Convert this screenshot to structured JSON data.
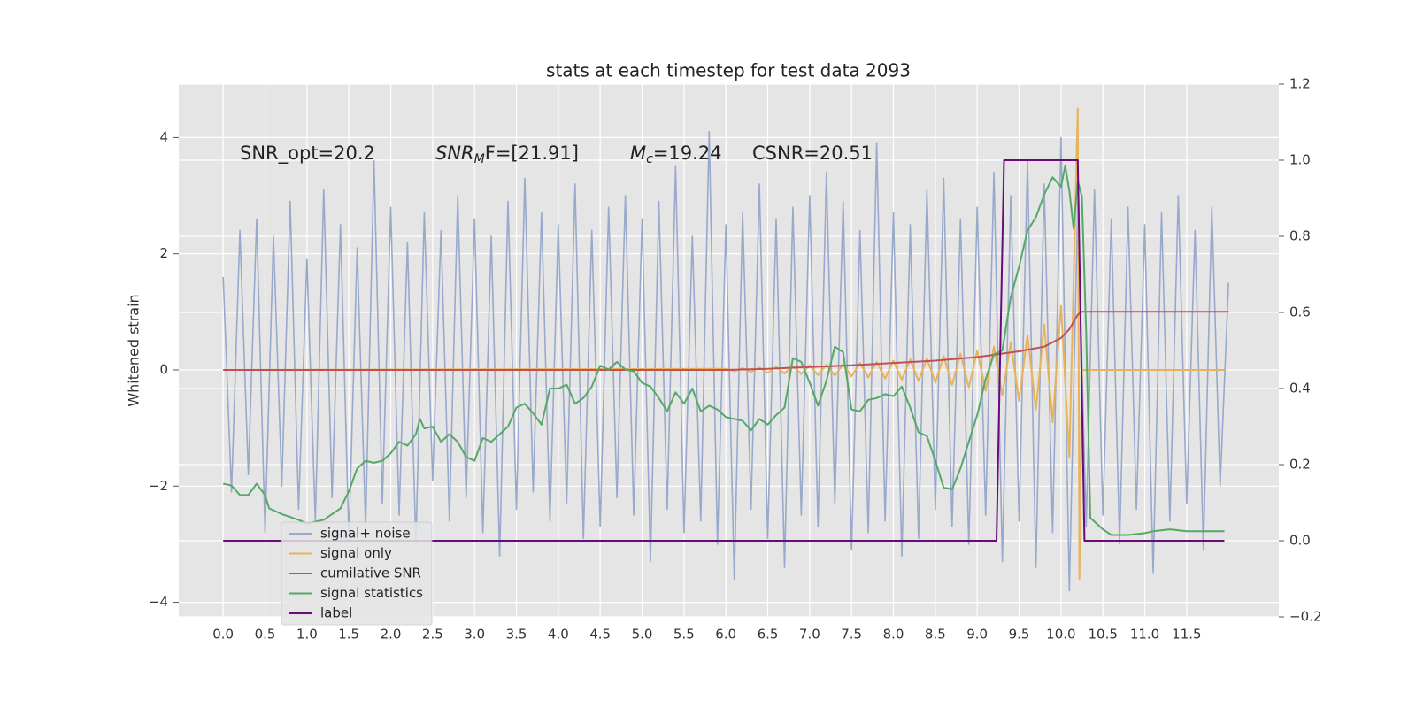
{
  "chart_data": {
    "type": "line",
    "title": "stats at each timestep for test data 2093",
    "ylabel": "Whitened strain",
    "xlim": [
      -0.53,
      12.6
    ],
    "ylim": [
      -4.25,
      4.92
    ],
    "y2lim": [
      -0.2,
      1.2
    ],
    "xticks": [
      {
        "value": 0,
        "label": "0.0"
      },
      {
        "value": 0.5,
        "label": "0.5"
      },
      {
        "value": 1,
        "label": "1.0"
      },
      {
        "value": 1.5,
        "label": "1.5"
      },
      {
        "value": 2,
        "label": "2.0"
      },
      {
        "value": 2.5,
        "label": "2.5"
      },
      {
        "value": 3,
        "label": "3.0"
      },
      {
        "value": 3.5,
        "label": "3.5"
      },
      {
        "value": 4,
        "label": "4.0"
      },
      {
        "value": 4.5,
        "label": "4.5"
      },
      {
        "value": 5,
        "label": "5.0"
      },
      {
        "value": 5.5,
        "label": "5.5"
      },
      {
        "value": 6,
        "label": "6.0"
      },
      {
        "value": 6.5,
        "label": "6.5"
      },
      {
        "value": 7,
        "label": "7.0"
      },
      {
        "value": 7.5,
        "label": "7.5"
      },
      {
        "value": 8,
        "label": "8.0"
      },
      {
        "value": 8.5,
        "label": "8.5"
      },
      {
        "value": 9,
        "label": "9.0"
      },
      {
        "value": 9.5,
        "label": "9.5"
      },
      {
        "value": 10,
        "label": "10.0"
      },
      {
        "value": 10.5,
        "label": "10.5"
      },
      {
        "value": 11,
        "label": "11.0"
      },
      {
        "value": 11.5,
        "label": "11.5"
      }
    ],
    "yticks": [
      {
        "value": -4,
        "label": "−4"
      },
      {
        "value": -2,
        "label": "−2"
      },
      0,
      2,
      4
    ],
    "y2ticks": [
      {
        "value": -0.2,
        "label": "−0.2"
      },
      {
        "value": 0,
        "label": "0.0"
      },
      0.2,
      0.4,
      0.6,
      0.8,
      {
        "value": 1,
        "label": "1.0"
      },
      1.2
    ],
    "grid": true,
    "legend": "lower left",
    "annotations": [
      {
        "text": "SNR_opt=20.2"
      },
      {
        "base": "SNR",
        "sub": "M",
        "tail": "F=[21.91]"
      },
      {
        "base": "M",
        "sub": "c",
        "tail": "=19.24"
      },
      {
        "text": "CSNR=20.51"
      }
    ],
    "series": [
      {
        "name": "signal+ noise",
        "color": "#98a9cc",
        "x": [
          0,
          0.1,
          0.2,
          0.3,
          0.4,
          0.5,
          0.6,
          0.7,
          0.8,
          0.9,
          1,
          1.1,
          1.2,
          1.3,
          1.4,
          1.5,
          1.6,
          1.7,
          1.8,
          1.9,
          2,
          2.1,
          2.2,
          2.3,
          2.4,
          2.5,
          2.6,
          2.7,
          2.8,
          2.9,
          3,
          3.1,
          3.2,
          3.3,
          3.4,
          3.5,
          3.6,
          3.7,
          3.8,
          3.9,
          4,
          4.1,
          4.2,
          4.3,
          4.4,
          4.5,
          4.6,
          4.7,
          4.8,
          4.9,
          5,
          5.1,
          5.2,
          5.3,
          5.4,
          5.5,
          5.6,
          5.7,
          5.8,
          5.9,
          6,
          6.1,
          6.2,
          6.3,
          6.4,
          6.5,
          6.6,
          6.7,
          6.8,
          6.9,
          7,
          7.1,
          7.2,
          7.3,
          7.4,
          7.5,
          7.6,
          7.7,
          7.8,
          7.9,
          8,
          8.1,
          8.2,
          8.3,
          8.4,
          8.5,
          8.6,
          8.7,
          8.8,
          8.9,
          9,
          9.1,
          9.2,
          9.3,
          9.4,
          9.5,
          9.6,
          9.7,
          9.8,
          9.9,
          10,
          10.1,
          10.2,
          10.3,
          10.4,
          10.5,
          10.6,
          10.7,
          10.8,
          10.9,
          11,
          11.1,
          11.2,
          11.3,
          11.4,
          11.5,
          11.6,
          11.7,
          11.8,
          11.9,
          12
        ],
        "values": [
          1.6,
          -2.1,
          2.4,
          -1.8,
          2.6,
          -2.8,
          2.3,
          -2.0,
          2.9,
          -2.4,
          1.9,
          -2.6,
          3.1,
          -2.2,
          2.5,
          -2.9,
          2.1,
          -2.7,
          3.6,
          -2.3,
          2.8,
          -2.5,
          2.2,
          -3.0,
          2.7,
          -1.9,
          2.4,
          -2.6,
          3.0,
          -2.2,
          2.6,
          -2.8,
          2.3,
          -3.2,
          2.9,
          -2.4,
          3.3,
          -2.1,
          2.7,
          -2.6,
          2.5,
          -2.3,
          3.2,
          -2.9,
          2.4,
          -2.7,
          2.8,
          -2.2,
          3.0,
          -2.5,
          2.6,
          -3.3,
          2.9,
          -2.4,
          3.5,
          -2.8,
          2.3,
          -2.6,
          4.1,
          -3.0,
          2.5,
          -3.6,
          2.7,
          -2.4,
          3.2,
          -2.9,
          2.6,
          -3.4,
          2.8,
          -2.5,
          3.0,
          -2.7,
          3.4,
          -2.3,
          2.9,
          -3.1,
          2.4,
          -2.8,
          3.9,
          -2.6,
          2.7,
          -3.2,
          2.5,
          -2.9,
          3.1,
          -2.4,
          3.3,
          -2.7,
          2.6,
          -3.0,
          2.8,
          -2.5,
          3.4,
          -3.3,
          3.0,
          -2.6,
          3.6,
          -3.4,
          3.2,
          -2.8,
          4.0,
          -3.8,
          2.9,
          -2.7,
          3.1,
          -2.5,
          2.6,
          -3.0,
          2.8,
          -2.4,
          2.5,
          -3.5,
          2.7,
          -2.6,
          3.0,
          -2.3,
          2.4,
          -3.1,
          2.8,
          -2.0,
          1.5
        ]
      },
      {
        "name": "signal only",
        "color": "#e8b25a",
        "x": [
          0,
          6,
          6.1,
          6.2,
          6.3,
          6.4,
          6.5,
          6.6,
          6.7,
          6.8,
          6.9,
          7,
          7.1,
          7.2,
          7.3,
          7.4,
          7.5,
          7.6,
          7.7,
          7.8,
          7.9,
          8,
          8.1,
          8.2,
          8.3,
          8.4,
          8.5,
          8.6,
          8.7,
          8.8,
          8.9,
          9,
          9.1,
          9.2,
          9.3,
          9.4,
          9.5,
          9.6,
          9.7,
          9.8,
          9.9,
          10,
          10.1,
          10.2,
          10.22,
          10.25,
          11.95
        ],
        "values": [
          0,
          0.02,
          -0.02,
          0.03,
          -0.03,
          0.04,
          -0.05,
          0.05,
          -0.06,
          0.07,
          -0.07,
          0.08,
          -0.09,
          0.09,
          -0.1,
          0.1,
          -0.11,
          0.12,
          -0.13,
          0.14,
          -0.15,
          0.16,
          -0.17,
          0.18,
          -0.19,
          0.2,
          -0.22,
          0.24,
          -0.26,
          0.28,
          -0.3,
          0.33,
          -0.36,
          0.4,
          -0.44,
          0.48,
          -0.53,
          0.6,
          -0.68,
          0.78,
          -0.9,
          1.1,
          -1.5,
          4.5,
          -3.6,
          0,
          0
        ]
      },
      {
        "name": "cumilative SNR",
        "color": "#c44e52",
        "x": [
          0,
          6,
          6.5,
          7,
          7.5,
          8,
          8.5,
          9,
          9.5,
          9.8,
          10,
          10.1,
          10.2,
          10.25,
          12
        ],
        "values": [
          0,
          0,
          0.02,
          0.05,
          0.08,
          0.12,
          0.16,
          0.22,
          0.32,
          0.4,
          0.55,
          0.7,
          0.95,
          1.0,
          1.0
        ]
      },
      {
        "name": "signal statistics",
        "color": "#55a868",
        "axis": "y2",
        "x": [
          0,
          0.1,
          0.2,
          0.3,
          0.4,
          0.5,
          0.55,
          0.7,
          0.9,
          1,
          1.2,
          1.4,
          1.5,
          1.6,
          1.7,
          1.8,
          1.9,
          2,
          2.1,
          2.2,
          2.3,
          2.35,
          2.4,
          2.5,
          2.6,
          2.7,
          2.8,
          2.9,
          3,
          3.1,
          3.2,
          3.3,
          3.4,
          3.5,
          3.6,
          3.7,
          3.8,
          3.9,
          4,
          4.1,
          4.2,
          4.3,
          4.4,
          4.5,
          4.6,
          4.7,
          4.8,
          4.9,
          5,
          5.1,
          5.2,
          5.3,
          5.4,
          5.5,
          5.6,
          5.7,
          5.8,
          5.9,
          6,
          6.2,
          6.3,
          6.4,
          6.5,
          6.6,
          6.7,
          6.8,
          6.9,
          7,
          7.1,
          7.2,
          7.3,
          7.4,
          7.5,
          7.6,
          7.7,
          7.8,
          7.9,
          8,
          8.1,
          8.2,
          8.3,
          8.4,
          8.5,
          8.6,
          8.7,
          8.8,
          8.9,
          9,
          9.1,
          9.2,
          9.3,
          9.4,
          9.5,
          9.6,
          9.7,
          9.8,
          9.9,
          10,
          10.05,
          10.1,
          10.15,
          10.2,
          10.25,
          10.3,
          10.35,
          10.5,
          10.6,
          10.8,
          11,
          11.1,
          11.3,
          11.5,
          11.8,
          11.95
        ],
        "values": [
          0.15,
          0.145,
          0.12,
          0.12,
          0.15,
          0.12,
          0.085,
          0.07,
          0.055,
          0.045,
          0.055,
          0.085,
          0.13,
          0.19,
          0.21,
          0.205,
          0.21,
          0.23,
          0.26,
          0.25,
          0.28,
          0.32,
          0.295,
          0.3,
          0.26,
          0.28,
          0.26,
          0.22,
          0.21,
          0.27,
          0.26,
          0.28,
          0.3,
          0.35,
          0.36,
          0.335,
          0.305,
          0.4,
          0.4,
          0.41,
          0.36,
          0.375,
          0.405,
          0.46,
          0.45,
          0.47,
          0.45,
          0.445,
          0.415,
          0.405,
          0.375,
          0.34,
          0.39,
          0.36,
          0.4,
          0.34,
          0.355,
          0.345,
          0.325,
          0.315,
          0.29,
          0.32,
          0.305,
          0.33,
          0.35,
          0.48,
          0.47,
          0.415,
          0.355,
          0.42,
          0.51,
          0.495,
          0.345,
          0.34,
          0.37,
          0.375,
          0.385,
          0.38,
          0.405,
          0.35,
          0.285,
          0.275,
          0.21,
          0.14,
          0.135,
          0.19,
          0.26,
          0.33,
          0.425,
          0.49,
          0.5,
          0.64,
          0.72,
          0.815,
          0.85,
          0.91,
          0.955,
          0.93,
          0.985,
          0.92,
          0.82,
          0.945,
          0.905,
          0.55,
          0.06,
          0.03,
          0.015,
          0.015,
          0.02,
          0.025,
          0.03,
          0.025,
          0.025,
          0.025
        ]
      },
      {
        "name": "label",
        "color": "#6a0a7a",
        "axis": "y2",
        "x": [
          0,
          9.23,
          9.32,
          10.2,
          10.28,
          11.95
        ],
        "values": [
          0,
          0,
          1,
          1,
          0,
          0
        ]
      }
    ]
  }
}
